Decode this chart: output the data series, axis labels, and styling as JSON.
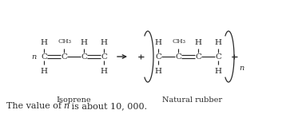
{
  "bg_color": "#ffffff",
  "text_color": "#2a2a2a",
  "isoprene_label": "Isoprene",
  "rubber_label": "Natural rubber",
  "bottom_text_1": "The value of ",
  "bottom_text_2": "n",
  "bottom_text_3": " is about 10, 000.",
  "figsize": [
    3.78,
    1.43
  ],
  "dpi": 100
}
